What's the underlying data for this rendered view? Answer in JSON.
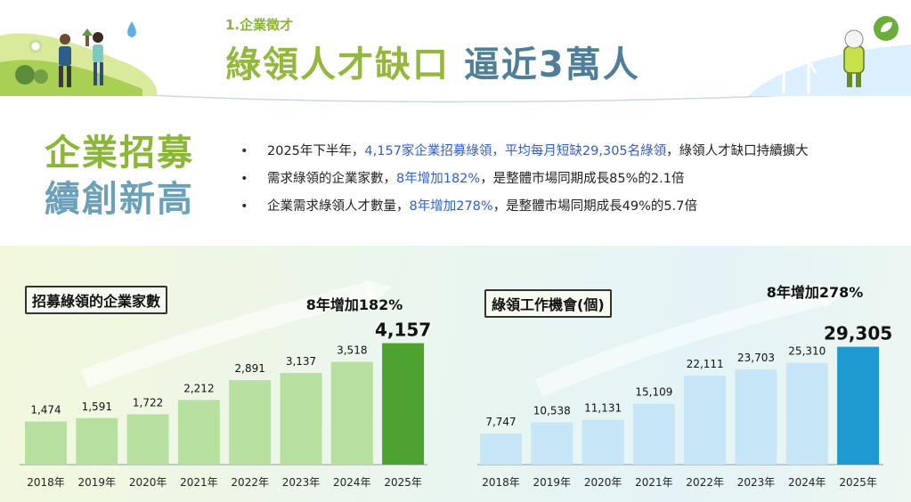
{
  "header": {
    "subtitle": "1.企業徵才",
    "title_part1": "綠領人才缺口",
    "title_part2": "逼近3萬人"
  },
  "side_heading": {
    "line1": "企業招募",
    "line2": "續創新高"
  },
  "bullets": [
    {
      "parts": [
        {
          "text": "2025年下半年，",
          "hl": false
        },
        {
          "text": "4,157家企業招募綠領，平均每月短缺29,305名綠領",
          "hl": true
        },
        {
          "text": "，綠領人才缺口持續擴大",
          "hl": false
        }
      ]
    },
    {
      "parts": [
        {
          "text": "需求綠領的企業家數，",
          "hl": false
        },
        {
          "text": "8年增加182%",
          "hl": true
        },
        {
          "text": "，是整體市場同期成長85%的2.1倍",
          "hl": false
        }
      ]
    },
    {
      "parts": [
        {
          "text": "企業需求綠領人才數量，",
          "hl": false
        },
        {
          "text": "8年增加278%",
          "hl": true
        },
        {
          "text": "，是整體市場同期成長49%的5.7倍",
          "hl": false
        }
      ]
    }
  ],
  "colors": {
    "left_bar": "#b7e0a0",
    "left_bar_highlight": "#4da12f",
    "right_bar": "#c6e6f7",
    "right_bar_highlight": "#1e9ad0",
    "title_green": "#94b83c",
    "title_blue": "#4f7f98",
    "highlight_text": "#2f5fd0"
  },
  "icons": [
    "people-planting-icon",
    "water-drop-icon",
    "wind-turbine-icon",
    "robot-mascot-icon",
    "leaf-badge-icon",
    "growth-arrow-icon"
  ],
  "chart_data": [
    {
      "type": "bar",
      "title": "招募綠領的企業家數",
      "annotation": "8年增加182%",
      "categories": [
        "2018年",
        "2019年",
        "2020年",
        "2021年",
        "2022年",
        "2023年",
        "2024年",
        "2025年"
      ],
      "values": [
        1474,
        1591,
        1722,
        2212,
        2891,
        3137,
        3518,
        4157
      ],
      "value_labels": [
        "1,474",
        "1,591",
        "1,722",
        "2,212",
        "2,891",
        "3,137",
        "3,518",
        "4,157"
      ],
      "ylim": [
        0,
        4500
      ],
      "grid": false,
      "legend": "none"
    },
    {
      "type": "bar",
      "title": "綠領工作機會(個)",
      "annotation": "8年增加278%",
      "categories": [
        "2018年",
        "2019年",
        "2020年",
        "2021年",
        "2022年",
        "2023年",
        "2024年",
        "2025年"
      ],
      "values": [
        7747,
        10538,
        11131,
        15109,
        22111,
        23703,
        25310,
        29305
      ],
      "value_labels": [
        "7,747",
        "10,538",
        "11,131",
        "15,109",
        "22,111",
        "23,703",
        "25,310",
        "29,305"
      ],
      "ylim": [
        0,
        31500
      ],
      "grid": false,
      "legend": "none"
    }
  ]
}
